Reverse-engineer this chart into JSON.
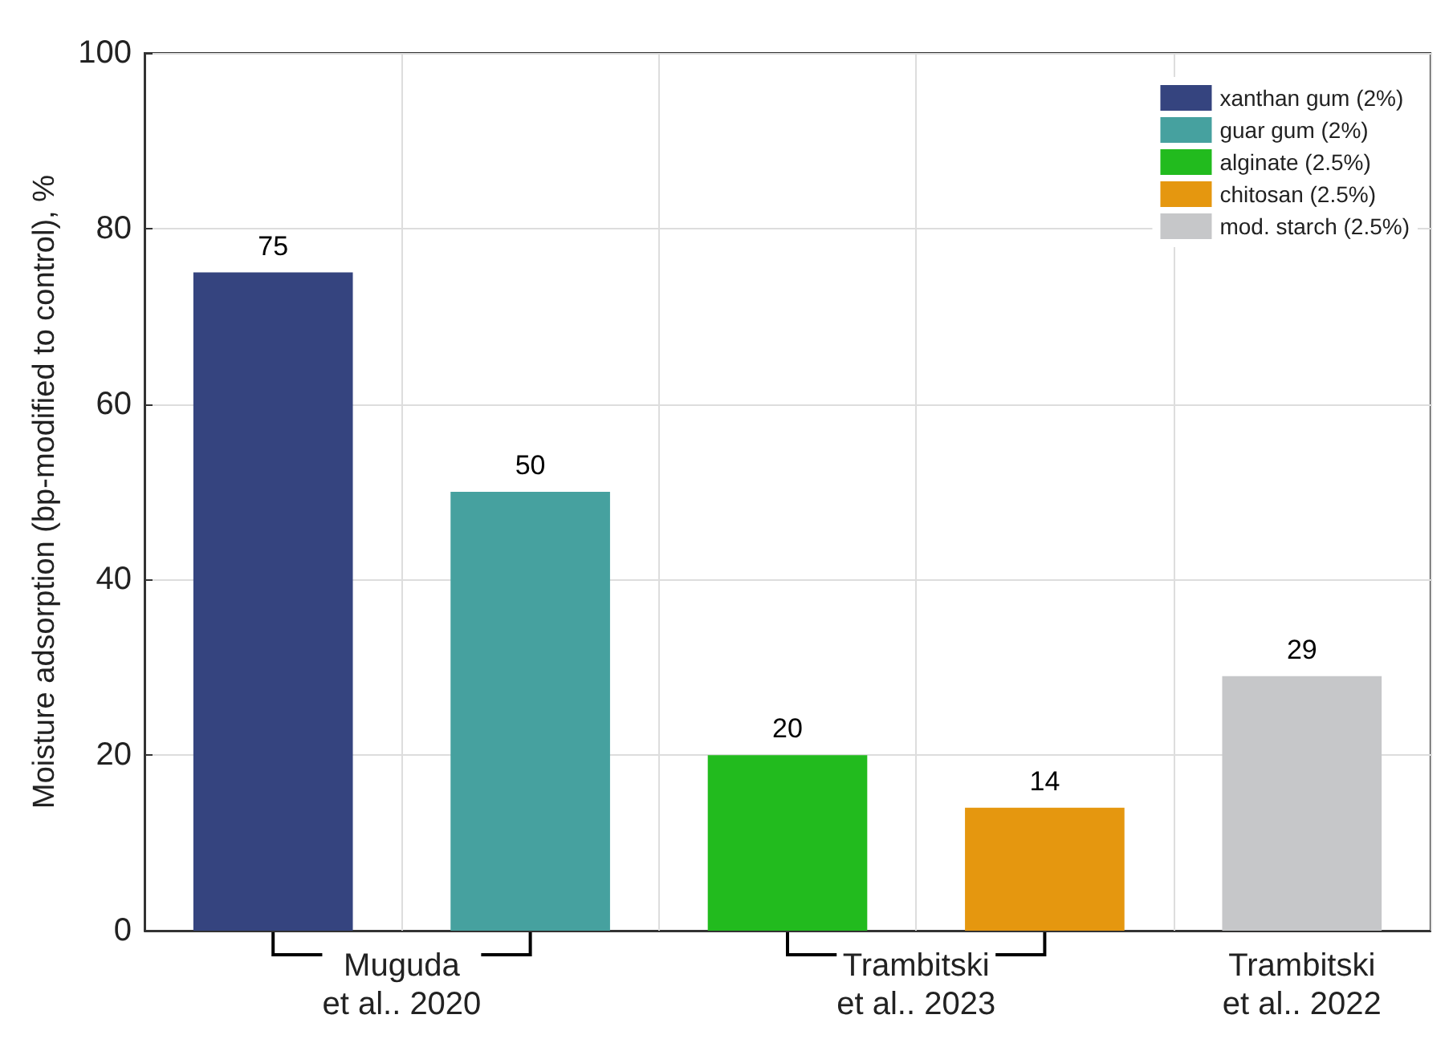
{
  "chart_data": {
    "type": "bar",
    "ylabel": "Moisture adsorption (bp-modified to control), %",
    "categories": [
      "Muguda\net al.. 2020",
      "Trambitski\net al.. 2023",
      "Trambitski\net al.. 2022"
    ],
    "series": [
      {
        "name": "xanthan gum (2%)",
        "color": "#35447f",
        "values": [
          75,
          null,
          null
        ]
      },
      {
        "name": "guar gum (2%)",
        "color": "#46a19f",
        "values": [
          50,
          null,
          null
        ]
      },
      {
        "name": "alginate (2.5%)",
        "color": "#22bb1e",
        "values": [
          null,
          20,
          null
        ]
      },
      {
        "name": "chitosan (2.5%)",
        "color": "#e5970f",
        "values": [
          null,
          14,
          null
        ]
      },
      {
        "name": "mod. starch (2.5%)",
        "color": "#c6c7c9",
        "values": [
          null,
          null,
          29
        ]
      }
    ],
    "ylim": [
      0,
      100
    ],
    "yticks": [
      0,
      20,
      40,
      60,
      80,
      100
    ],
    "grid": true,
    "legend": "top right",
    "data_labels": true
  }
}
